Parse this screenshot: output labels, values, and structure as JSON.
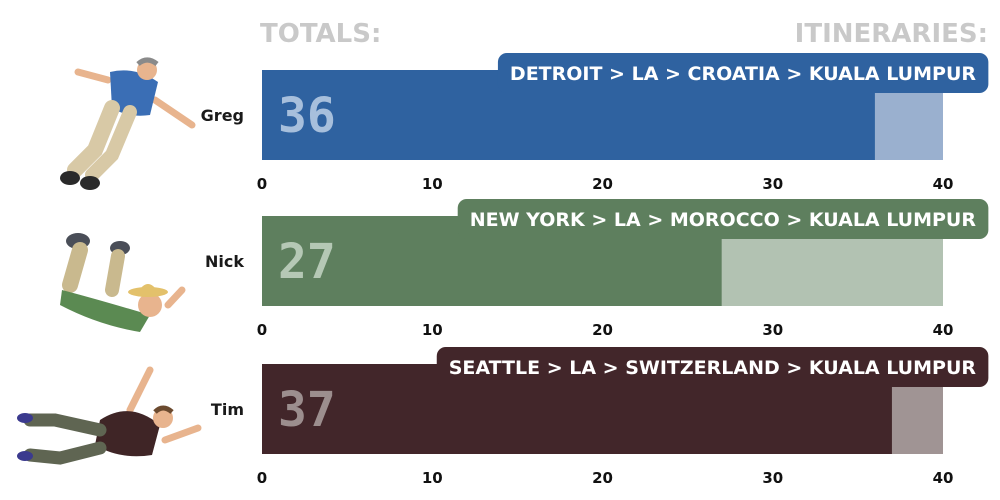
{
  "header": {
    "left": "TOTALS:",
    "right": "ITINERARIES:"
  },
  "chart_data": {
    "type": "bar",
    "orientation": "horizontal",
    "categories": [
      "Greg",
      "Nick",
      "Tim"
    ],
    "values": [
      36,
      27,
      37
    ],
    "xlim": [
      0,
      40
    ],
    "ticks": [
      0,
      10,
      20,
      30,
      40
    ],
    "itineraries": [
      "DETROIT > LA > CROATIA > KUALA LUMPUR",
      "NEW YORK > LA > MOROCCO > KUALA LUMPUR",
      "SEATTLE > LA > SWITZERLAND > KUALA LUMPUR"
    ],
    "colors": [
      {
        "bar": "#2f62a0",
        "track": "#9ab0cf",
        "value_text": "#a7bfdc"
      },
      {
        "bar": "#5e7f5e",
        "track": "#b2c2b2",
        "value_text": "#b5c8b5"
      },
      {
        "bar": "#42262a",
        "track": "#a09494",
        "value_text": "#9c8e8e"
      }
    ]
  }
}
